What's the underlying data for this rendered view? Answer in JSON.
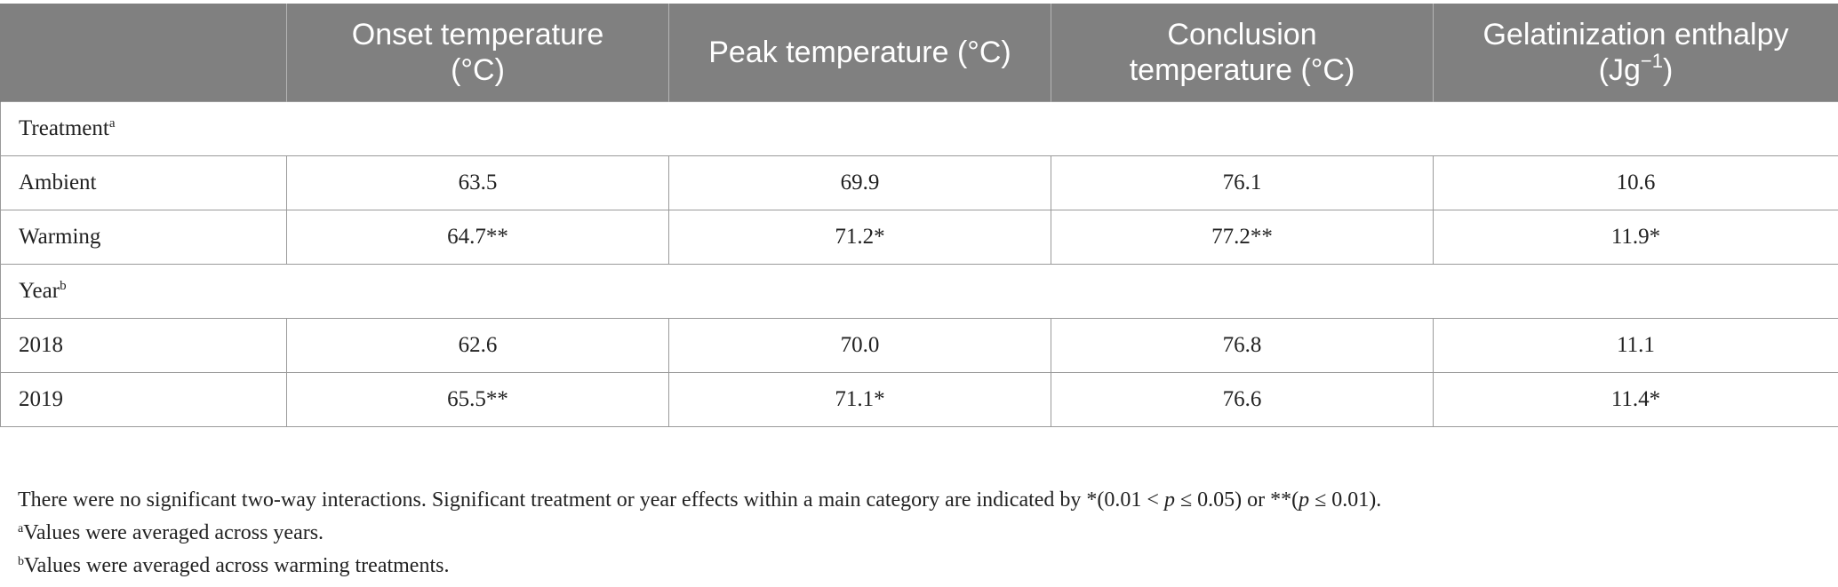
{
  "table": {
    "headers": {
      "blank": "",
      "onset_line1": "Onset temperature",
      "onset_line2": "(°C)",
      "peak": "Peak temperature (°C)",
      "conclusion_line1": "Conclusion",
      "conclusion_line2": "temperature (°C)",
      "enthalpy_line1": "Gelatinization enthalpy",
      "enthalpy_unit_base": "(Jg",
      "enthalpy_unit_exp": "−1",
      "enthalpy_unit_close": ")"
    },
    "groups": {
      "treatment": {
        "label": "Treatment",
        "mark": "a"
      },
      "year": {
        "label": "Year",
        "mark": "b"
      }
    },
    "rows": [
      {
        "label": "Ambient",
        "onset": "63.5",
        "peak": "69.9",
        "conclusion": "76.1",
        "enthalpy": "10.6"
      },
      {
        "label": "Warming",
        "onset": "64.7**",
        "peak": "71.2*",
        "conclusion": "77.2**",
        "enthalpy": "11.9*"
      },
      {
        "label": "2018",
        "onset": "62.6",
        "peak": "70.0",
        "conclusion": "76.8",
        "enthalpy": "11.1"
      },
      {
        "label": "2019",
        "onset": "65.5**",
        "peak": "71.1*",
        "conclusion": "76.6",
        "enthalpy": "11.4*"
      }
    ]
  },
  "notes": {
    "main_part1": "There were no significant two-way interactions. Significant treatment or year effects within a main category are indicated by *(0.01 < ",
    "main_p1": "p",
    "main_part2": " ≤ 0.05) or **(",
    "main_p2": "p",
    "main_part3": " ≤ 0.01).",
    "footnote_a_mark": "a",
    "footnote_a_text": "Values were averaged across years.",
    "footnote_b_mark": "b",
    "footnote_b_text": "Values were averaged across warming treatments."
  }
}
